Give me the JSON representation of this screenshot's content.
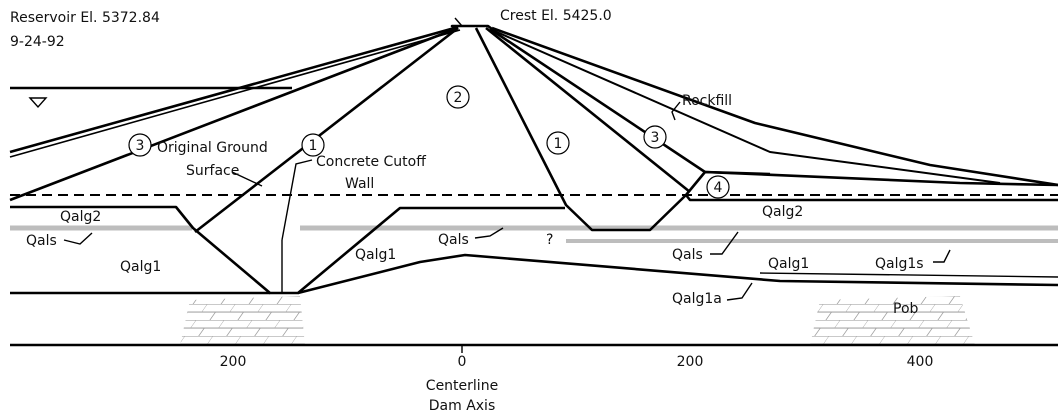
{
  "reservoir": {
    "elevation": "Reservoir El. 5372.84",
    "date": "9-24-92"
  },
  "crest": "Crest El. 5425.0",
  "zones": [
    "1",
    "2",
    "1",
    "3",
    "3",
    "4"
  ],
  "callouts": {
    "rockfill": "Rockfill",
    "ground": [
      "Original Ground",
      "Surface"
    ],
    "cutoff": [
      "Concrete Cutoff",
      "Wall"
    ]
  },
  "materials": [
    "Qalg2",
    "Qalg2",
    "Qals",
    "Qals",
    "Qals",
    "Qalg1",
    "Qalg1",
    "Qalg1",
    "Qalg1s",
    "Qalg1a",
    "?",
    "Pob"
  ],
  "axis": {
    "ticks": [
      "200",
      "0",
      "200",
      "400"
    ],
    "centerline": [
      "Centerline",
      "Dam Axis"
    ]
  }
}
